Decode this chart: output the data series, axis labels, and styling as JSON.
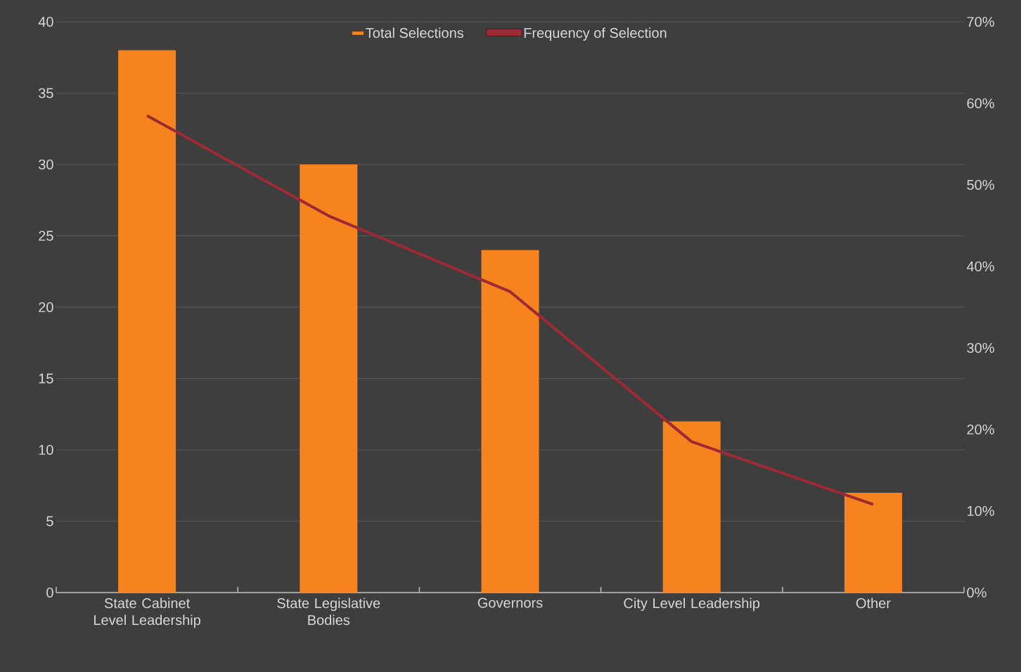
{
  "chart_data": {
    "type": "bar",
    "categories": [
      "State Cabinet Level Leadership",
      "State Legislative Bodies",
      "Governors",
      "City Level Leadership",
      "Other"
    ],
    "series": [
      {
        "name": "Total Selections",
        "color": "#f7831e",
        "values": [
          38,
          30,
          24,
          12,
          7
        ]
      },
      {
        "name": "Frequency of Selection",
        "type": "line",
        "axis": "y2",
        "color": "#9e2a35",
        "values": [
          58.5,
          46.2,
          36.9,
          18.5,
          10.8
        ]
      }
    ],
    "ylim": [
      0,
      40
    ],
    "yticks": [
      0,
      5,
      10,
      15,
      20,
      25,
      30,
      35,
      40
    ],
    "y2lim": [
      0,
      70
    ],
    "y2ticks": [
      {
        "value": 0,
        "label": "0%"
      },
      {
        "value": 10,
        "label": "10%"
      },
      {
        "value": 20,
        "label": "20%"
      },
      {
        "value": 30,
        "label": "30%"
      },
      {
        "value": 40,
        "label": "40%"
      },
      {
        "value": 50,
        "label": "50%"
      },
      {
        "value": 60,
        "label": "60%"
      },
      {
        "value": 70,
        "label": "70%"
      }
    ],
    "grid": "y",
    "legend": "top",
    "marker": "none"
  }
}
